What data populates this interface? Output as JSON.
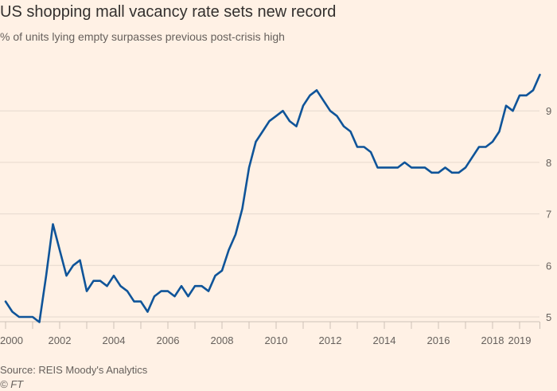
{
  "title": "US shopping mall vacancy rate sets new record",
  "subtitle": "% of units lying empty surpasses previous post-crisis high",
  "source": "Source: REIS Moody's Analytics",
  "credit": "© FT",
  "colors": {
    "background": "#fff1e5",
    "line": "#0f5499",
    "grid": "#e6d9ce"
  },
  "chart_data": {
    "type": "line",
    "title": "US shopping mall vacancy rate sets new record",
    "subtitle": "% of units lying empty surpasses previous post-crisis high",
    "x_frequency": "quarterly",
    "x_start": "2000 Q1",
    "xlim": [
      2000,
      2019.75
    ],
    "ylim": [
      5,
      9.8
    ],
    "y_axis_position": "right",
    "grid": true,
    "x_ticks": [
      2000,
      2002,
      2004,
      2006,
      2008,
      2010,
      2012,
      2014,
      2016,
      2018,
      2019
    ],
    "y_ticks": [
      5,
      6,
      7,
      8,
      9
    ],
    "series": [
      {
        "values": [
          5.3,
          5.1,
          5.0,
          5.0,
          5.0,
          4.9,
          5.8,
          6.8,
          6.3,
          5.8,
          6.0,
          6.1,
          5.5,
          5.7,
          5.7,
          5.6,
          5.8,
          5.6,
          5.5,
          5.3,
          5.3,
          5.1,
          5.4,
          5.5,
          5.5,
          5.4,
          5.6,
          5.4,
          5.6,
          5.6,
          5.5,
          5.8,
          5.9,
          6.3,
          6.6,
          7.1,
          7.9,
          8.4,
          8.6,
          8.8,
          8.9,
          9.0,
          8.8,
          8.7,
          9.1,
          9.3,
          9.4,
          9.2,
          9.0,
          8.9,
          8.7,
          8.6,
          8.3,
          8.3,
          8.2,
          7.9,
          7.9,
          7.9,
          7.9,
          8.0,
          7.9,
          7.9,
          7.9,
          7.8,
          7.8,
          7.9,
          7.8,
          7.8,
          7.9,
          8.1,
          8.3,
          8.3,
          8.4,
          8.6,
          9.1,
          9.0,
          9.3,
          9.3,
          9.4,
          9.7
        ]
      }
    ]
  }
}
